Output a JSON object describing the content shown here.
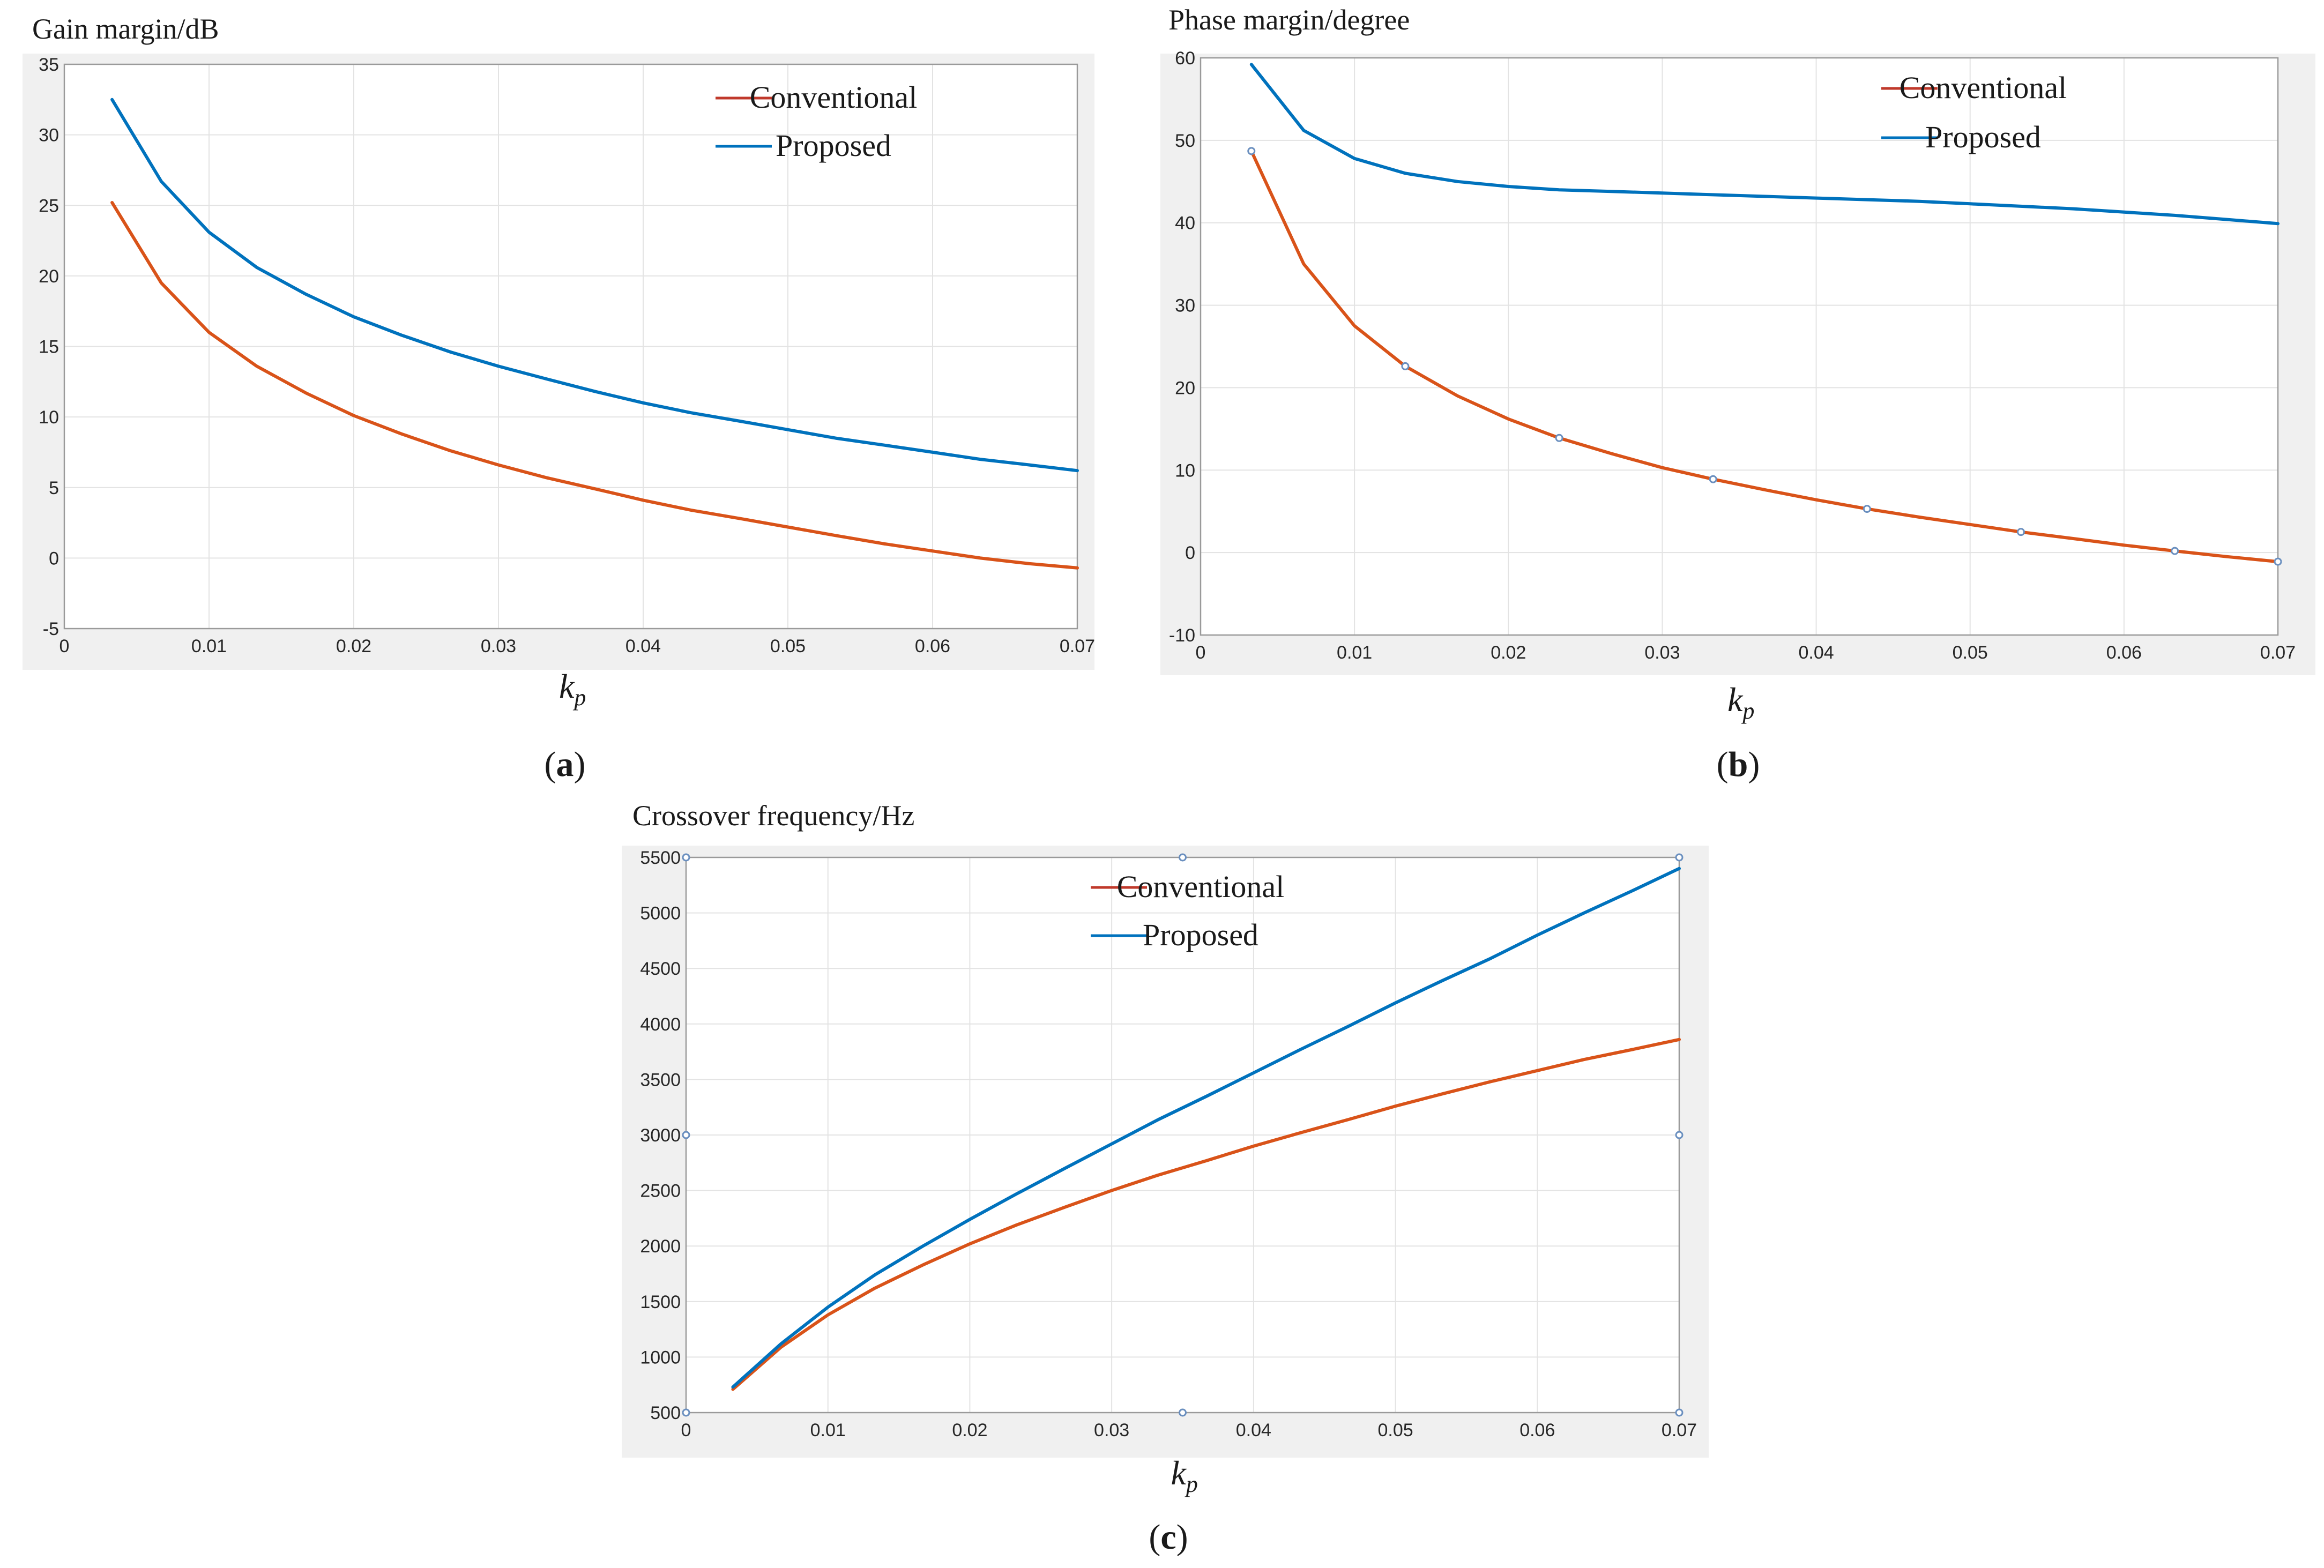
{
  "colors": {
    "conventional": "#D95319",
    "proposed": "#0072BD",
    "legend_conventional": "#C0392B",
    "panel_bg": "#F0F0F0",
    "plot_bg": "#FFFFFF",
    "grid": "#E3E3E3",
    "axis": "#9A9A9A",
    "tick_text": "#262626",
    "marker": "#6A8FBF"
  },
  "chart_data": [
    {
      "id": "a",
      "type": "line",
      "title": "Gain margin/dB",
      "xlabel": "k",
      "xlabel_sub": "p",
      "panel_label": "a",
      "xlim": [
        0,
        0.07
      ],
      "ylim": [
        -5,
        35
      ],
      "xticks": [
        0,
        0.01,
        0.02,
        0.03,
        0.04,
        0.05,
        0.06,
        0.07
      ],
      "xtick_labels": [
        "0",
        "0.01",
        "0.02",
        "0.03",
        "0.04",
        "0.05",
        "0.06",
        "0.07"
      ],
      "yticks": [
        -5,
        0,
        5,
        10,
        15,
        20,
        25,
        30,
        35
      ],
      "ytick_labels": [
        "-5",
        "0",
        "5",
        "10",
        "15",
        "20",
        "25",
        "30",
        "35"
      ],
      "x": [
        0.0033,
        0.0067,
        0.01,
        0.0133,
        0.0167,
        0.02,
        0.0233,
        0.0267,
        0.03,
        0.0333,
        0.0367,
        0.04,
        0.0433,
        0.0467,
        0.05,
        0.0533,
        0.0567,
        0.06,
        0.0633,
        0.0667,
        0.07
      ],
      "series": [
        {
          "name": "Conventional",
          "values": [
            25.2,
            19.5,
            16.0,
            13.6,
            11.7,
            10.1,
            8.8,
            7.6,
            6.6,
            5.7,
            4.9,
            4.1,
            3.4,
            2.8,
            2.2,
            1.6,
            1.0,
            0.5,
            0.0,
            -0.4,
            -0.7
          ]
        },
        {
          "name": "Proposed",
          "values": [
            32.5,
            26.7,
            23.1,
            20.6,
            18.7,
            17.1,
            15.8,
            14.6,
            13.6,
            12.7,
            11.8,
            11.0,
            10.3,
            9.7,
            9.1,
            8.5,
            8.0,
            7.5,
            7.0,
            6.6,
            6.2
          ]
        }
      ],
      "legend": [
        "Conventional",
        "Proposed"
      ],
      "legend_position": "top-right",
      "grid": true
    },
    {
      "id": "b",
      "type": "line",
      "title": "Phase margin/degree",
      "xlabel": "k",
      "xlabel_sub": "p",
      "panel_label": "b",
      "xlim": [
        0,
        0.07
      ],
      "ylim": [
        -10,
        60
      ],
      "xticks": [
        0,
        0.01,
        0.02,
        0.03,
        0.04,
        0.05,
        0.06,
        0.07
      ],
      "xtick_labels": [
        "0",
        "0.01",
        "0.02",
        "0.03",
        "0.04",
        "0.05",
        "0.06",
        "0.07"
      ],
      "yticks": [
        -10,
        0,
        10,
        20,
        30,
        40,
        50,
        60
      ],
      "ytick_labels": [
        "-10",
        "0",
        "10",
        "20",
        "30",
        "40",
        "50",
        "60"
      ],
      "x": [
        0.0033,
        0.0067,
        0.01,
        0.0133,
        0.0167,
        0.02,
        0.0233,
        0.0267,
        0.03,
        0.0333,
        0.0367,
        0.04,
        0.0433,
        0.0467,
        0.05,
        0.0533,
        0.0567,
        0.06,
        0.0633,
        0.0667,
        0.07
      ],
      "series": [
        {
          "name": "Conventional",
          "values": [
            48.7,
            35.0,
            27.5,
            22.6,
            19.0,
            16.2,
            13.9,
            12.0,
            10.3,
            8.9,
            7.6,
            6.4,
            5.3,
            4.3,
            3.4,
            2.5,
            1.7,
            0.9,
            0.2,
            -0.5,
            -1.1
          ]
        },
        {
          "name": "Proposed",
          "values": [
            59.2,
            51.2,
            47.8,
            46.0,
            45.0,
            44.4,
            44.0,
            43.8,
            43.6,
            43.4,
            43.2,
            43.0,
            42.8,
            42.6,
            42.3,
            42.0,
            41.7,
            41.3,
            40.9,
            40.4,
            39.9
          ]
        }
      ],
      "markers": {
        "series": "Conventional",
        "x": [
          0.0033,
          0.0133,
          0.0233,
          0.0333,
          0.0433,
          0.0533,
          0.0633,
          0.07
        ]
      },
      "legend": [
        "Conventional",
        "Proposed"
      ],
      "legend_position": "top-right",
      "grid": true
    },
    {
      "id": "c",
      "type": "line",
      "title": "Crossover frequency/Hz",
      "xlabel": "k",
      "xlabel_sub": "p",
      "panel_label": "c",
      "xlim": [
        0,
        0.07
      ],
      "ylim": [
        500,
        5500
      ],
      "xticks": [
        0,
        0.01,
        0.02,
        0.03,
        0.04,
        0.05,
        0.06,
        0.07
      ],
      "xtick_labels": [
        "0",
        "0.01",
        "0.02",
        "0.03",
        "0.04",
        "0.05",
        "0.06",
        "0.07"
      ],
      "yticks": [
        500,
        1000,
        1500,
        2000,
        2500,
        3000,
        3500,
        4000,
        4500,
        5000,
        5500
      ],
      "ytick_labels": [
        "500",
        "1000",
        "1500",
        "2000",
        "2500",
        "3000",
        "3500",
        "4000",
        "4500",
        "5000",
        "5500"
      ],
      "x": [
        0.0033,
        0.0067,
        0.01,
        0.0133,
        0.0167,
        0.02,
        0.0233,
        0.0267,
        0.03,
        0.0333,
        0.0367,
        0.04,
        0.0433,
        0.0467,
        0.05,
        0.0533,
        0.0567,
        0.06,
        0.0633,
        0.0667,
        0.07
      ],
      "series": [
        {
          "name": "Conventional",
          "values": [
            710,
            1090,
            1380,
            1620,
            1830,
            2020,
            2190,
            2350,
            2500,
            2640,
            2770,
            2900,
            3020,
            3140,
            3260,
            3370,
            3480,
            3580,
            3680,
            3770,
            3860
          ]
        },
        {
          "name": "Proposed",
          "values": [
            730,
            1120,
            1450,
            1740,
            2000,
            2240,
            2470,
            2700,
            2920,
            3140,
            3350,
            3560,
            3770,
            3980,
            4190,
            4390,
            4590,
            4800,
            5000,
            5200,
            5400
          ]
        }
      ],
      "selection_markers": [
        [
          0,
          5500
        ],
        [
          0.035,
          5500
        ],
        [
          0.07,
          5500
        ],
        [
          0,
          3000
        ],
        [
          0.07,
          3000
        ],
        [
          0,
          500
        ],
        [
          0.035,
          500
        ],
        [
          0.07,
          500
        ]
      ],
      "legend": [
        "Conventional",
        "Proposed"
      ],
      "legend_position": "top-center",
      "grid": true
    }
  ]
}
